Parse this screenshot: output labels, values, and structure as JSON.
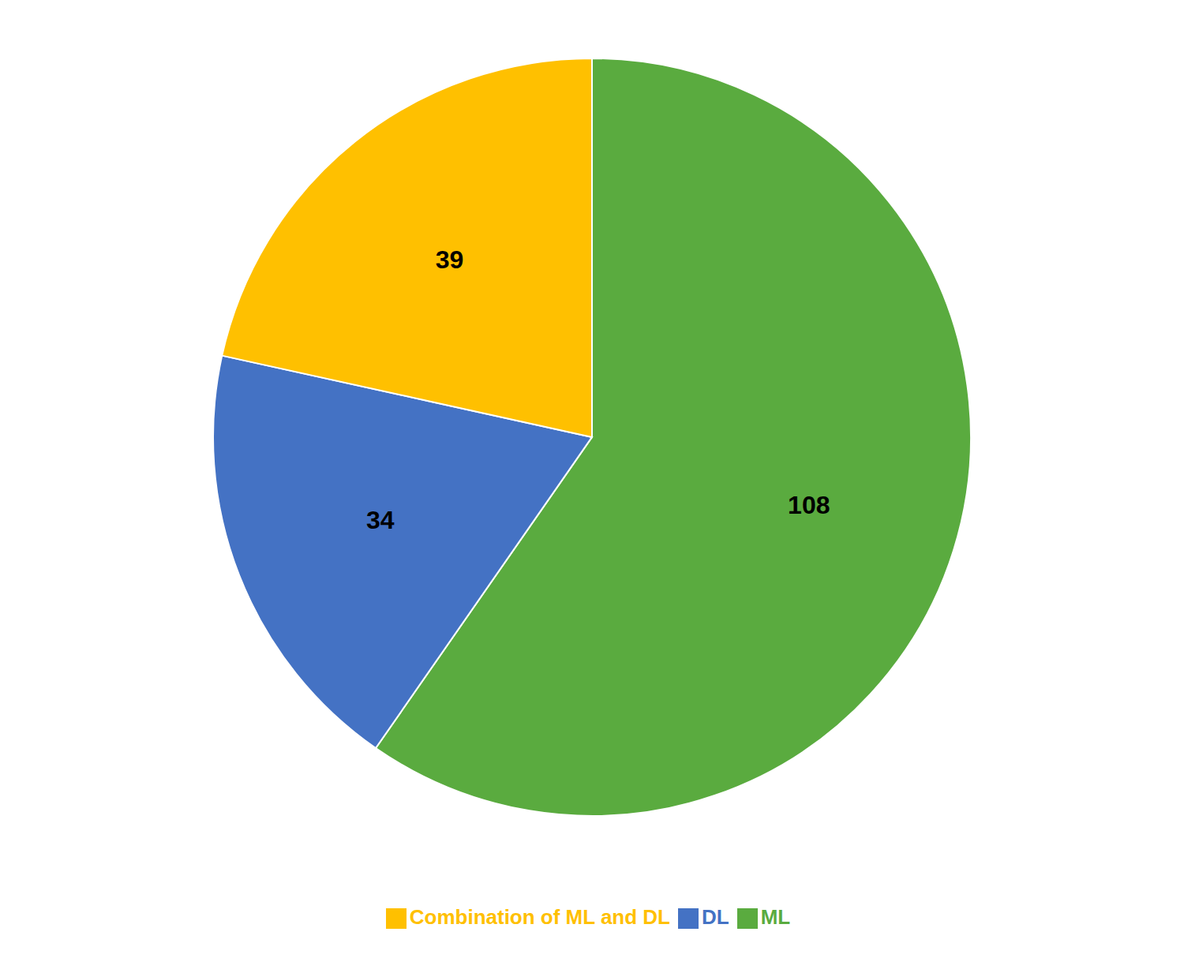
{
  "chart_data": {
    "type": "pie",
    "categories": [
      "ML",
      "DL",
      "Combination of ML and DL"
    ],
    "values": [
      108,
      34,
      39
    ],
    "colors": [
      "#5aab3f",
      "#4472c4",
      "#ffc000"
    ],
    "data_labels": true,
    "legend": "bottom"
  }
}
